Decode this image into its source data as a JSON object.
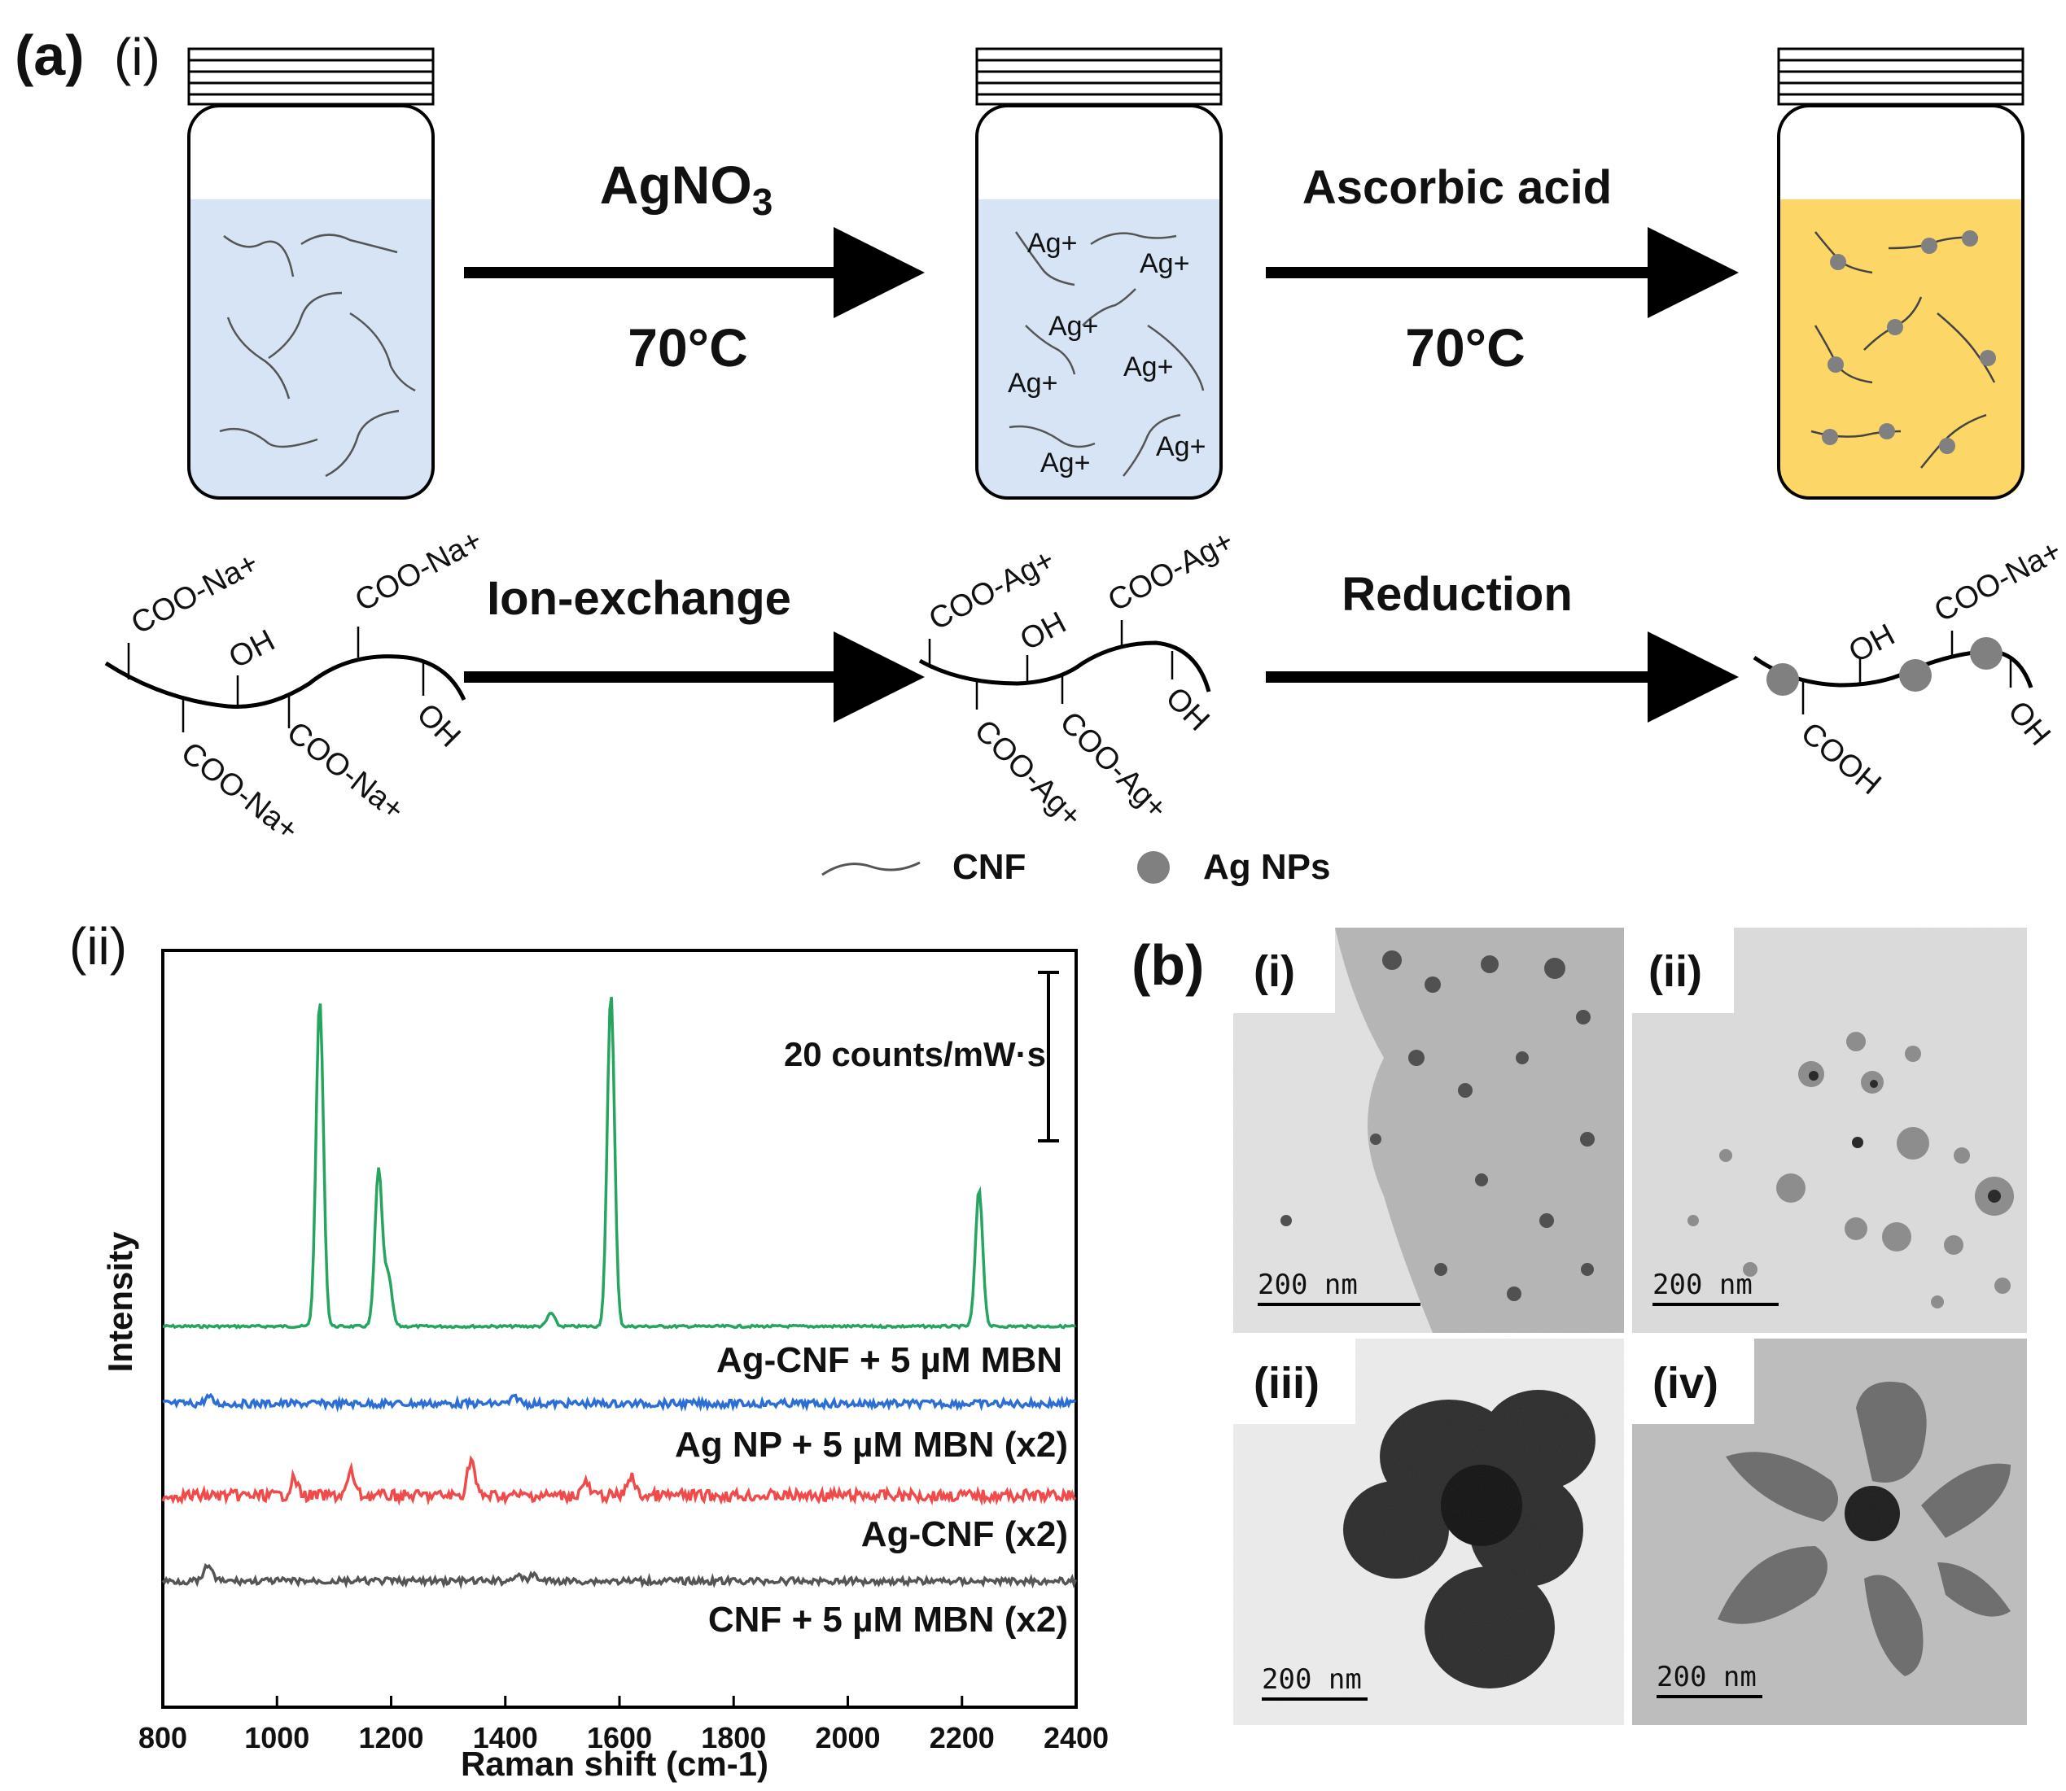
{
  "panel_a": {
    "label": "(a)",
    "sub_i": "(i)",
    "sub_ii": "(ii)",
    "step1": {
      "reagent_prefix": "AgNO",
      "reagent_sub": "3",
      "temp": "70°C",
      "process": "Ion-exchange"
    },
    "step2": {
      "reagent": "Ascorbic acid",
      "temp": "70°C",
      "process": "Reduction"
    },
    "jar2_labels": [
      "Ag+",
      "Ag+",
      "Ag+",
      "Ag+",
      "Ag+",
      "Ag+",
      "Ag+"
    ],
    "chain1": {
      "top": [
        "COO-Na+",
        "OH",
        "COO-Na+"
      ],
      "bottom": [
        "COO-Na+",
        "COO-Na+",
        "OH"
      ]
    },
    "chain2": {
      "top": [
        "COO-Ag+",
        "OH",
        "COO-Ag+"
      ],
      "bottom": [
        "COO-Ag+",
        "COO-Ag+",
        "OH"
      ]
    },
    "chain3": {
      "top": [
        "OH",
        "COO-Na+"
      ],
      "bottom": [
        "COOH",
        "OH"
      ]
    },
    "legend": {
      "cnf": "CNF",
      "agnp": "Ag NPs"
    },
    "colors": {
      "solution_blue": "#d6e4f5",
      "solution_yellow": "#fcd666",
      "particle": "#808080"
    }
  },
  "chart_data": {
    "type": "line",
    "xlabel": "Raman shift (cm-1)",
    "ylabel": "Intensity",
    "xlim": [
      800,
      2400
    ],
    "xticks": [
      "800",
      "1000",
      "1200",
      "1400",
      "1600",
      "1800",
      "2000",
      "2200",
      "2400"
    ],
    "scale_bar": "20 counts/mW·s",
    "series": [
      {
        "name": "Ag-CNF + 5 µM MBN",
        "color": "#25a55f",
        "peaks": [
          [
            1075,
            98
          ],
          [
            1178,
            47
          ],
          [
            1195,
            15
          ],
          [
            1480,
            4
          ],
          [
            1585,
            100
          ],
          [
            2230,
            41
          ]
        ]
      },
      {
        "name": "Ag NP + 5 µM MBN (x2)",
        "color": "#2b6fd6",
        "peaks": [
          [
            880,
            2
          ],
          [
            1418,
            2
          ]
        ]
      },
      {
        "name": "Ag-CNF (x2)",
        "color": "#f04a4a",
        "peaks": [
          [
            1030,
            5
          ],
          [
            1130,
            7
          ],
          [
            1340,
            11
          ],
          [
            1540,
            4
          ],
          [
            1620,
            6
          ]
        ]
      },
      {
        "name": "CNF + 5 µM MBN (x2)",
        "color": "#555555",
        "peaks": [
          [
            880,
            5
          ],
          [
            1420,
            2
          ],
          [
            1450,
            2
          ]
        ]
      }
    ]
  },
  "panel_b": {
    "label": "(b)",
    "images": [
      {
        "tag": "(i)",
        "scale": "200 nm"
      },
      {
        "tag": "(ii)",
        "scale": "200 nm"
      },
      {
        "tag": "(iii)",
        "scale": "200 nm"
      },
      {
        "tag": "(iv)",
        "scale": "200 nm"
      }
    ]
  }
}
